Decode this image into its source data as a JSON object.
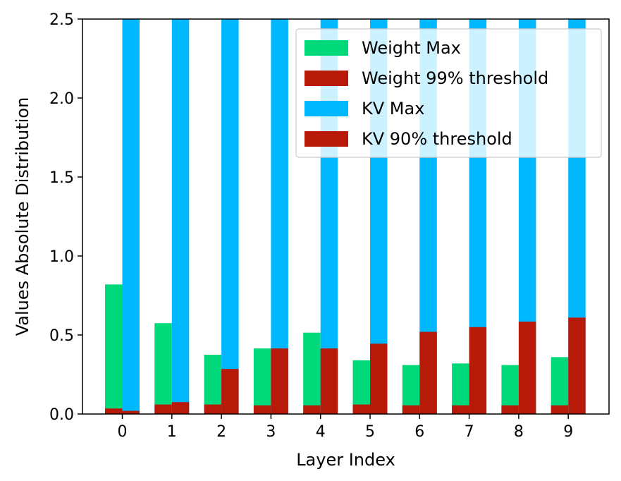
{
  "chart_data": {
    "type": "bar",
    "xlabel": "Layer Index",
    "ylabel": "Values Absolute Distribution",
    "ylim": [
      0,
      2.5
    ],
    "yticks": [
      "0.0",
      "0.5",
      "1.0",
      "1.5",
      "2.0",
      "2.5"
    ],
    "grid": false,
    "legend_position": "top-right",
    "categories": [
      "0",
      "1",
      "2",
      "3",
      "4",
      "5",
      "6",
      "7",
      "8",
      "9"
    ],
    "series": [
      {
        "name": "Weight Max",
        "color": "#00d97a",
        "group": "weight",
        "values": [
          0.82,
          0.575,
          0.375,
          0.415,
          0.515,
          0.34,
          0.31,
          0.32,
          0.31,
          0.36
        ]
      },
      {
        "name": "Weight 99% threshold",
        "color": "#b81a0a",
        "group": "weight",
        "values": [
          0.035,
          0.06,
          0.06,
          0.055,
          0.055,
          0.06,
          0.055,
          0.055,
          0.055,
          0.055
        ]
      },
      {
        "name": "KV Max",
        "color": "#00b8ff",
        "group": "kv",
        "values": [
          2.5,
          2.5,
          2.5,
          2.5,
          2.5,
          2.5,
          2.5,
          2.5,
          2.5,
          2.5
        ]
      },
      {
        "name": "KV 90% threshold",
        "color": "#b81a0a",
        "group": "kv",
        "values": [
          0.02,
          0.075,
          0.285,
          0.415,
          0.415,
          0.445,
          0.52,
          0.55,
          0.585,
          0.61
        ]
      }
    ]
  }
}
